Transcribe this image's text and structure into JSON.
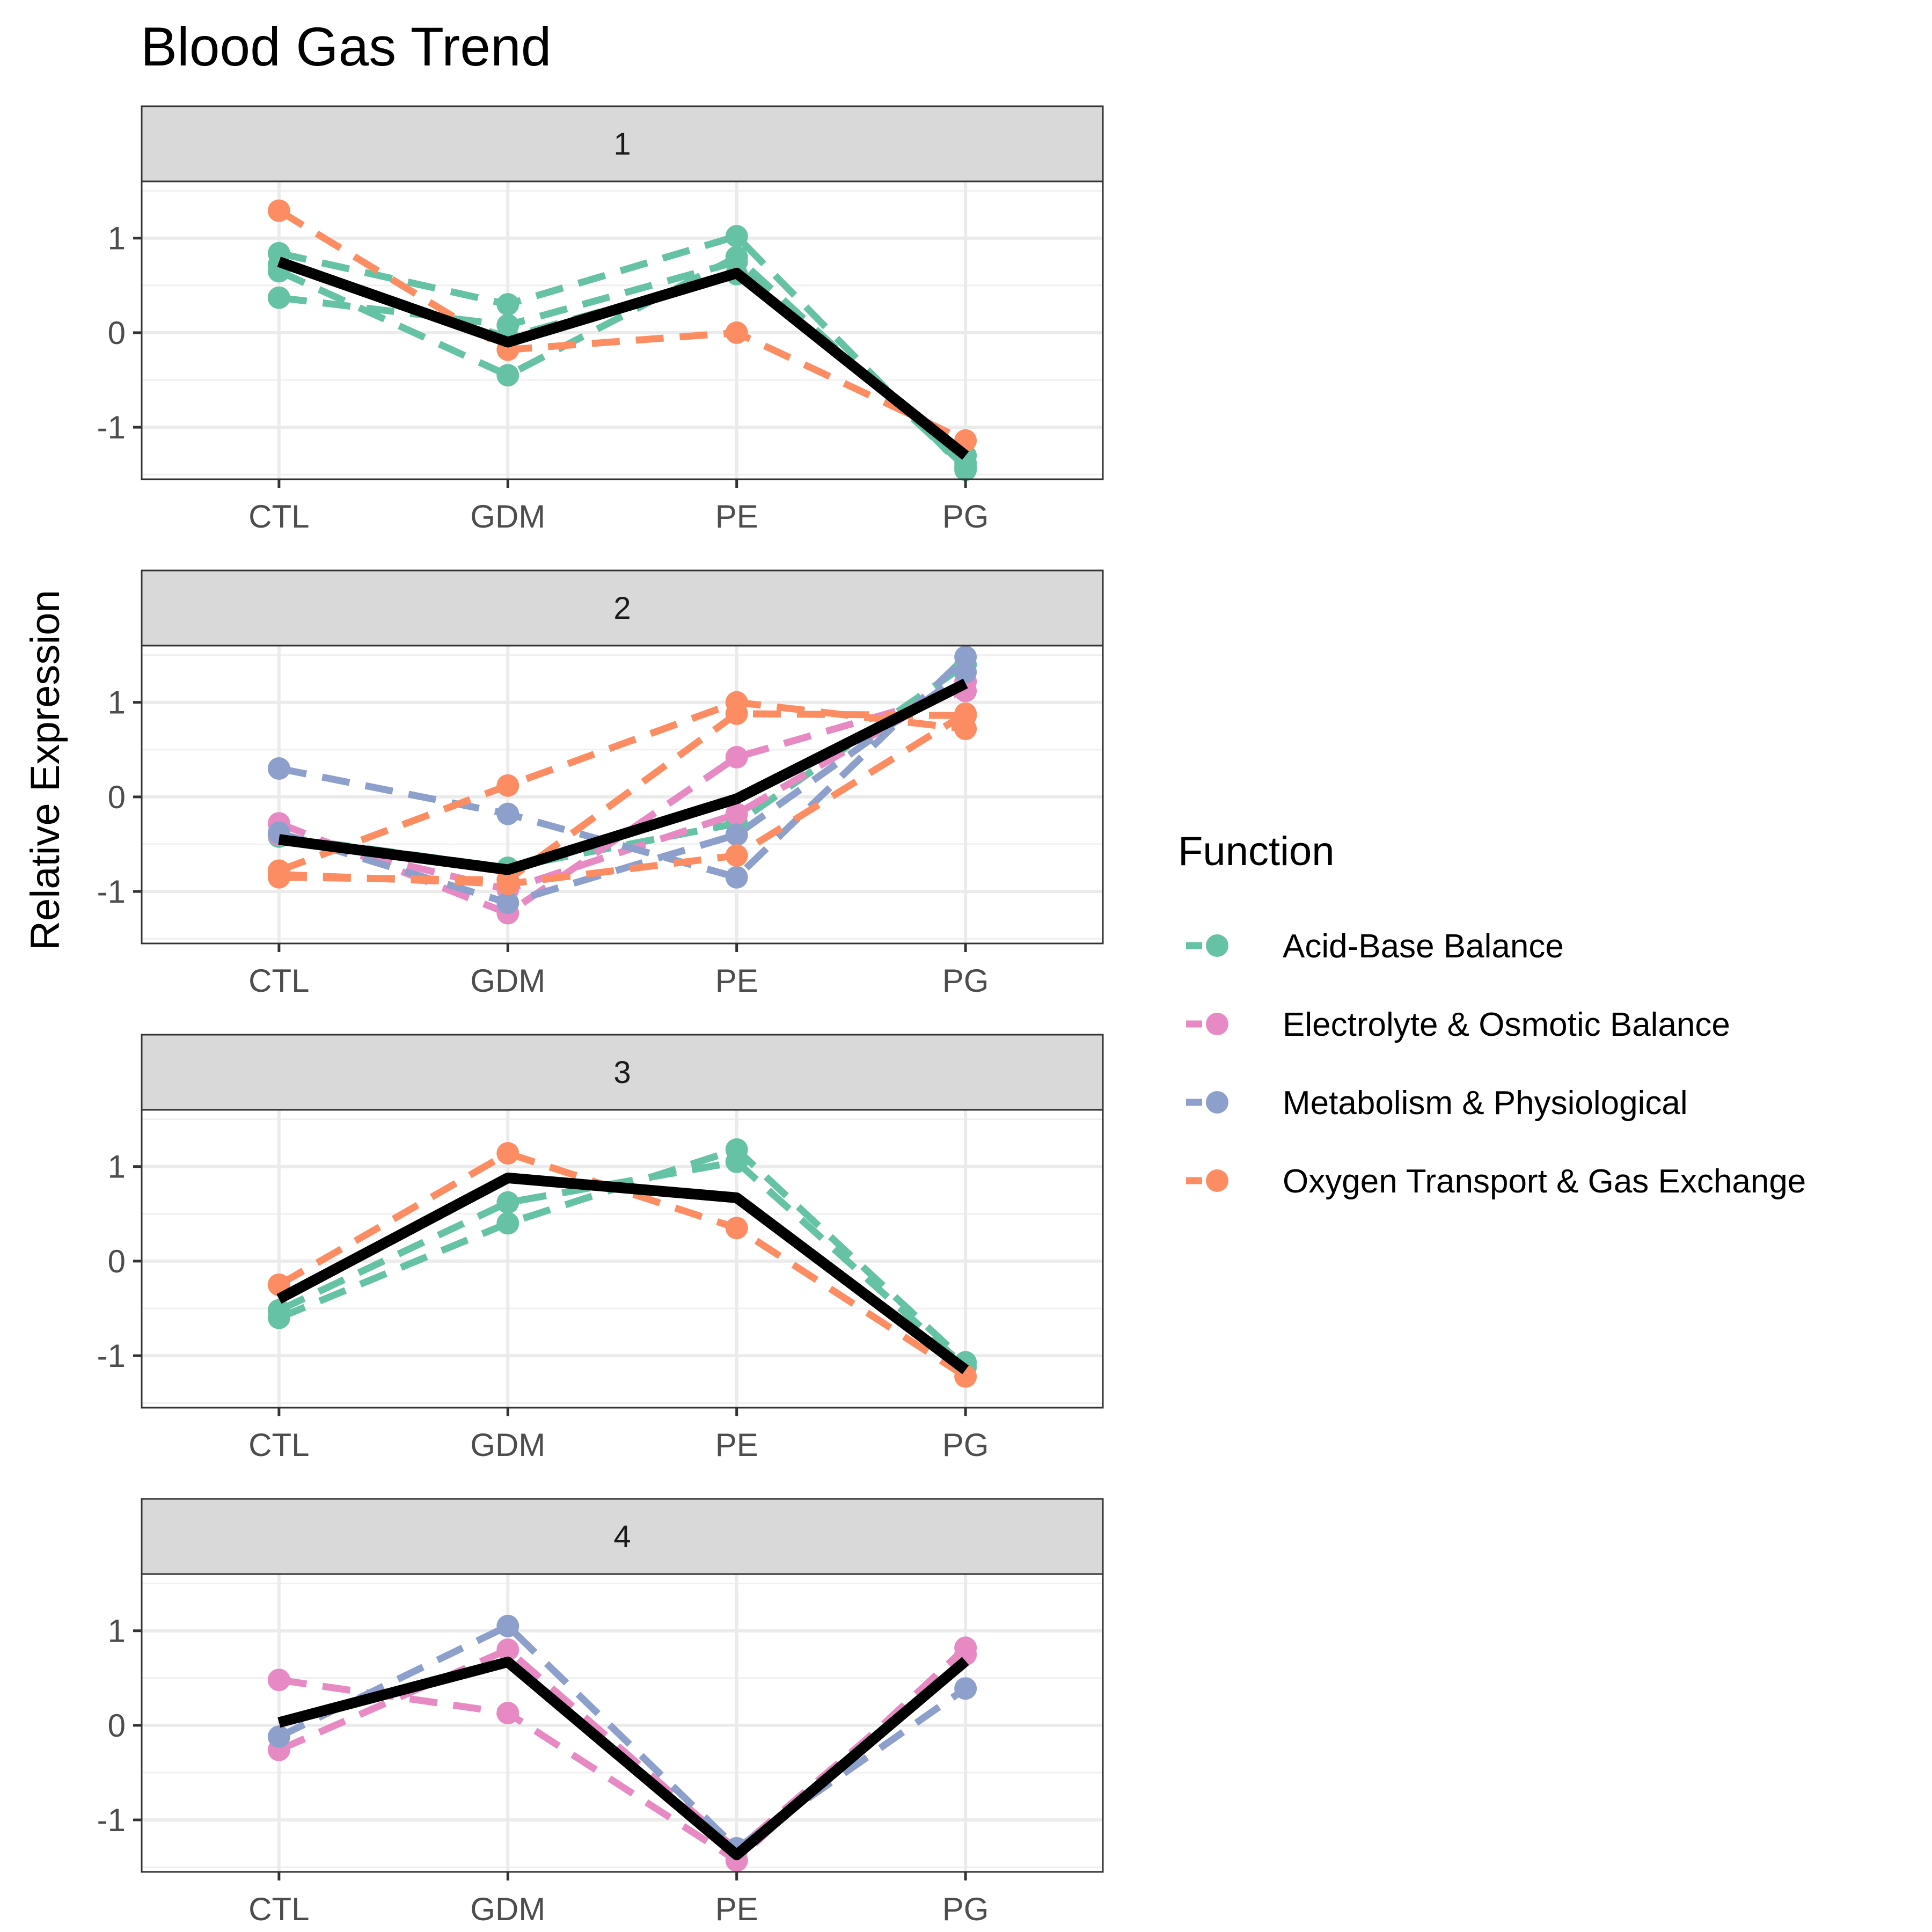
{
  "chart_data": {
    "type": "line",
    "title": "Blood Gas Trend",
    "ylabel": "Relative Expression",
    "xlabel": "",
    "categories": [
      "CTL",
      "GDM",
      "PE",
      "PG"
    ],
    "ylim": [
      -1.55,
      1.6
    ],
    "yticks": [
      -1,
      0,
      1
    ],
    "grid": true,
    "legend": {
      "title": "Function",
      "position": "right",
      "entries": [
        {
          "name": "Acid-Base Balance",
          "color": "#66c2a5"
        },
        {
          "name": "Electrolyte & Osmotic Balance",
          "color": "#e78ac3"
        },
        {
          "name": "Metabolism & Physiological",
          "color": "#8da0cb"
        },
        {
          "name": "Oxygen Transport & Gas Exchange",
          "color": "#fc8d62"
        }
      ]
    },
    "trend_color": "#000000",
    "panels": [
      {
        "label": "1",
        "series": [
          {
            "function": "Acid-Base Balance",
            "values": [
              0.84,
              0.3,
              1.02,
              -1.45
            ]
          },
          {
            "function": "Acid-Base Balance",
            "values": [
              0.65,
              -0.45,
              0.8,
              -1.42
            ]
          },
          {
            "function": "Acid-Base Balance",
            "values": [
              0.37,
              0.08,
              0.75,
              -1.38
            ]
          },
          {
            "function": "Acid-Base Balance",
            "values": [
              0.72,
              -0.05,
              0.62,
              -1.3
            ]
          },
          {
            "function": "Oxygen Transport & Gas Exchange",
            "values": [
              1.29,
              -0.18,
              0.0,
              -1.14
            ]
          }
        ],
        "trend": [
          0.75,
          -0.1,
          0.63,
          -1.3
        ]
      },
      {
        "label": "2",
        "series": [
          {
            "function": "Acid-Base Balance",
            "values": [
              -0.42,
              -0.75,
              -0.28,
              1.4
            ]
          },
          {
            "function": "Electrolyte & Osmotic Balance",
            "values": [
              -0.28,
              -1.23,
              0.42,
              1.12
            ]
          },
          {
            "function": "Electrolyte & Osmotic Balance",
            "values": [
              -0.4,
              -0.98,
              -0.18,
              1.22
            ]
          },
          {
            "function": "Metabolism & Physiological",
            "values": [
              0.3,
              -0.18,
              -0.85,
              1.48
            ]
          },
          {
            "function": "Metabolism & Physiological",
            "values": [
              -0.38,
              -1.12,
              -0.4,
              1.32
            ]
          },
          {
            "function": "Oxygen Transport & Gas Exchange",
            "values": [
              -0.78,
              0.12,
              1.0,
              0.72
            ]
          },
          {
            "function": "Oxygen Transport & Gas Exchange",
            "values": [
              -0.85,
              -0.88,
              0.88,
              0.86
            ]
          },
          {
            "function": "Oxygen Transport & Gas Exchange",
            "values": [
              -0.82,
              -0.92,
              -0.62,
              0.88
            ]
          }
        ],
        "trend": [
          -0.45,
          -0.77,
          -0.02,
          1.2
        ]
      },
      {
        "label": "3",
        "series": [
          {
            "function": "Acid-Base Balance",
            "values": [
              -0.6,
              0.4,
              1.18,
              -1.07
            ]
          },
          {
            "function": "Acid-Base Balance",
            "values": [
              -0.52,
              0.62,
              1.05,
              -1.12
            ]
          },
          {
            "function": "Oxygen Transport & Gas Exchange",
            "values": [
              -0.25,
              1.14,
              0.35,
              -1.22
            ]
          }
        ],
        "trend": [
          -0.4,
          0.88,
          0.67,
          -1.15
        ]
      },
      {
        "label": "4",
        "series": [
          {
            "function": "Electrolyte & Osmotic Balance",
            "values": [
              0.48,
              0.13,
              -1.43,
              0.82
            ]
          },
          {
            "function": "Electrolyte & Osmotic Balance",
            "values": [
              -0.26,
              0.8,
              -1.32,
              0.75
            ]
          },
          {
            "function": "Metabolism & Physiological",
            "values": [
              -0.12,
              1.05,
              -1.3,
              0.39
            ]
          }
        ],
        "trend": [
          0.03,
          0.67,
          -1.37,
          0.68
        ]
      }
    ]
  }
}
